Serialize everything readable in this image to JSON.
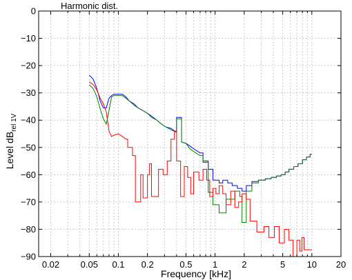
{
  "chart_data": {
    "type": "line",
    "title": "Harmonic dist.",
    "xlabel": "Frequency [kHz]",
    "ylabel": "Level dB",
    "ylabel_sub": "rel 1V",
    "xscale": "log",
    "xlim": [
      0.015,
      20
    ],
    "ylim": [
      -90,
      0
    ],
    "grid": true,
    "x_ticks": [
      {
        "value": 0.02,
        "label": "0.02"
      },
      {
        "value": 0.05,
        "label": "0.05"
      },
      {
        "value": 0.1,
        "label": "0.1"
      },
      {
        "value": 0.2,
        "label": "0.2"
      },
      {
        "value": 0.5,
        "label": "0.5"
      },
      {
        "value": 1,
        "label": "1"
      },
      {
        "value": 2,
        "label": "2"
      },
      {
        "value": 5,
        "label": "5"
      },
      {
        "value": 10,
        "label": "10"
      },
      {
        "value": 20,
        "label": "20"
      }
    ],
    "y_ticks": [
      {
        "value": 0,
        "label": "0"
      },
      {
        "value": -10,
        "label": "−10"
      },
      {
        "value": -20,
        "label": "−20"
      },
      {
        "value": -30,
        "label": "−30"
      },
      {
        "value": -40,
        "label": "−40"
      },
      {
        "value": -50,
        "label": "−50"
      },
      {
        "value": -60,
        "label": "−60"
      },
      {
        "value": -70,
        "label": "−70"
      },
      {
        "value": -80,
        "label": "−80"
      },
      {
        "value": -90,
        "label": "−90"
      }
    ],
    "minor_x_grid": [
      0.03,
      0.04,
      0.06,
      0.07,
      0.08,
      0.09,
      0.3,
      0.4,
      0.6,
      0.7,
      0.8,
      0.9,
      3,
      4,
      6,
      7,
      8,
      9
    ],
    "series": [
      {
        "color": "#0000ff",
        "points": [
          [
            0.05,
            -23.5
          ],
          [
            0.055,
            -25
          ],
          [
            0.06,
            -28.5
          ],
          [
            0.065,
            -33
          ],
          [
            0.07,
            -35.5
          ],
          [
            0.075,
            -35.5
          ],
          [
            0.08,
            -32
          ],
          [
            0.085,
            -31
          ],
          [
            0.09,
            -30.5
          ],
          [
            0.11,
            -30.5
          ],
          [
            0.12,
            -31.5
          ],
          [
            0.13,
            -33
          ],
          [
            0.145,
            -34
          ],
          [
            0.16,
            -35.5
          ],
          [
            0.18,
            -36.5
          ],
          [
            0.2,
            -37.5
          ],
          [
            0.22,
            -38.5
          ],
          [
            0.25,
            -40
          ],
          [
            0.28,
            -41.5
          ],
          [
            0.31,
            -42.5
          ],
          [
            0.35,
            -43
          ],
          [
            0.4,
            -44.5
          ],
          [
            0.4,
            -39
          ],
          [
            0.45,
            -39
          ],
          [
            0.45,
            -48
          ],
          [
            0.5,
            -48.5
          ],
          [
            0.55,
            -49.5
          ],
          [
            0.6,
            -50.5
          ],
          [
            0.7,
            -52
          ],
          [
            0.75,
            -52
          ],
          [
            0.75,
            -55
          ],
          [
            0.85,
            -55
          ],
          [
            0.85,
            -58
          ],
          [
            0.95,
            -58
          ],
          [
            0.95,
            -62
          ],
          [
            1.1,
            -62
          ],
          [
            1.1,
            -63
          ],
          [
            1.2,
            -63
          ],
          [
            1.2,
            -62
          ],
          [
            1.35,
            -62
          ],
          [
            1.35,
            -63
          ],
          [
            1.5,
            -63
          ],
          [
            1.5,
            -64
          ],
          [
            1.7,
            -64
          ],
          [
            1.7,
            -65
          ],
          [
            1.9,
            -65
          ],
          [
            1.9,
            -66
          ],
          [
            2.1,
            -66
          ],
          [
            2.1,
            -64
          ],
          [
            2.4,
            -64
          ],
          [
            2.4,
            -62.5
          ],
          [
            2.8,
            -62.5
          ],
          [
            2.8,
            -62
          ],
          [
            3.3,
            -62
          ],
          [
            3.3,
            -61.5
          ],
          [
            3.8,
            -61.5
          ],
          [
            3.8,
            -61
          ],
          [
            4.3,
            -61
          ],
          [
            4.3,
            -60.5
          ],
          [
            4.8,
            -60.5
          ],
          [
            4.8,
            -60
          ],
          [
            5.3,
            -60
          ],
          [
            5.3,
            -59
          ],
          [
            5.8,
            -59
          ],
          [
            5.8,
            -58
          ],
          [
            6.5,
            -58
          ],
          [
            6.5,
            -57
          ],
          [
            7.2,
            -57
          ],
          [
            7.2,
            -56
          ],
          [
            8,
            -56
          ],
          [
            8,
            -54.5
          ],
          [
            8.8,
            -54.5
          ],
          [
            8.8,
            -53.5
          ],
          [
            9.6,
            -53.5
          ],
          [
            9.6,
            -52.5
          ],
          [
            10,
            -52.5
          ]
        ]
      },
      {
        "color": "#008000",
        "points": [
          [
            0.05,
            -27
          ],
          [
            0.055,
            -28.5
          ],
          [
            0.06,
            -31.5
          ],
          [
            0.065,
            -36
          ],
          [
            0.07,
            -39.5
          ],
          [
            0.075,
            -41.5
          ],
          [
            0.08,
            -36.5
          ],
          [
            0.085,
            -31.5
          ],
          [
            0.09,
            -31
          ],
          [
            0.11,
            -31
          ],
          [
            0.12,
            -32
          ],
          [
            0.13,
            -33
          ],
          [
            0.145,
            -34.5
          ],
          [
            0.16,
            -35.5
          ],
          [
            0.18,
            -36.5
          ],
          [
            0.2,
            -37.5
          ],
          [
            0.22,
            -39
          ],
          [
            0.25,
            -40
          ],
          [
            0.28,
            -41.5
          ],
          [
            0.31,
            -42.5
          ],
          [
            0.35,
            -43.5
          ],
          [
            0.4,
            -44.5
          ],
          [
            0.4,
            -39.5
          ],
          [
            0.45,
            -39.5
          ],
          [
            0.45,
            -48
          ],
          [
            0.5,
            -48.5
          ],
          [
            0.55,
            -50.5
          ],
          [
            0.6,
            -51.5
          ],
          [
            0.7,
            -53
          ],
          [
            0.75,
            -53
          ],
          [
            0.75,
            -55.5
          ],
          [
            0.85,
            -55.5
          ],
          [
            0.85,
            -66.5
          ],
          [
            0.95,
            -66.5
          ],
          [
            0.95,
            -71
          ],
          [
            1.1,
            -71
          ],
          [
            1.1,
            -74
          ],
          [
            1.3,
            -74
          ],
          [
            1.3,
            -69
          ],
          [
            1.6,
            -69
          ],
          [
            1.6,
            -66
          ],
          [
            1.8,
            -66
          ],
          [
            1.8,
            -68
          ],
          [
            1.9,
            -68
          ],
          [
            1.9,
            -77.5
          ],
          [
            2.1,
            -77.5
          ],
          [
            2.1,
            -66
          ],
          [
            2.4,
            -66
          ],
          [
            2.4,
            -63
          ],
          [
            2.8,
            -63
          ],
          [
            2.8,
            -62
          ],
          [
            3.3,
            -62
          ],
          [
            3.3,
            -61.5
          ],
          [
            3.8,
            -61.5
          ],
          [
            3.8,
            -61
          ],
          [
            4.3,
            -61
          ],
          [
            4.3,
            -60.5
          ],
          [
            4.8,
            -60.5
          ],
          [
            4.8,
            -60
          ],
          [
            5.3,
            -60
          ],
          [
            5.3,
            -59
          ],
          [
            5.8,
            -59
          ],
          [
            5.8,
            -58
          ],
          [
            6.5,
            -58
          ],
          [
            6.5,
            -57
          ],
          [
            7.2,
            -57
          ],
          [
            7.2,
            -56
          ],
          [
            8,
            -56
          ],
          [
            8,
            -54.5
          ],
          [
            8.8,
            -54.5
          ],
          [
            8.8,
            -53.5
          ],
          [
            9.6,
            -53.5
          ],
          [
            9.6,
            -52.5
          ],
          [
            10,
            -52.5
          ]
        ]
      },
      {
        "color": "#ff0000",
        "points": [
          [
            0.05,
            -26
          ],
          [
            0.055,
            -27
          ],
          [
            0.06,
            -29
          ],
          [
            0.065,
            -32
          ],
          [
            0.07,
            -34
          ],
          [
            0.075,
            -37
          ],
          [
            0.08,
            -44
          ],
          [
            0.085,
            -46
          ],
          [
            0.09,
            -45.5
          ],
          [
            0.1,
            -45
          ],
          [
            0.11,
            -46
          ],
          [
            0.12,
            -47
          ],
          [
            0.125,
            -47
          ],
          [
            0.125,
            -50
          ],
          [
            0.14,
            -50
          ],
          [
            0.14,
            -53
          ],
          [
            0.15,
            -53
          ],
          [
            0.15,
            -70
          ],
          [
            0.17,
            -70
          ],
          [
            0.17,
            -60
          ],
          [
            0.18,
            -60
          ],
          [
            0.18,
            -68.5
          ],
          [
            0.2,
            -68.5
          ],
          [
            0.2,
            -60
          ],
          [
            0.21,
            -60
          ],
          [
            0.21,
            -56
          ],
          [
            0.22,
            -56
          ],
          [
            0.22,
            -68
          ],
          [
            0.26,
            -68
          ],
          [
            0.26,
            -58
          ],
          [
            0.29,
            -58
          ],
          [
            0.29,
            -60
          ],
          [
            0.32,
            -60
          ],
          [
            0.32,
            -55
          ],
          [
            0.35,
            -55
          ],
          [
            0.35,
            -47
          ],
          [
            0.38,
            -47
          ],
          [
            0.38,
            -44
          ],
          [
            0.4,
            -44
          ],
          [
            0.4,
            -55
          ],
          [
            0.44,
            -55
          ],
          [
            0.44,
            -68
          ],
          [
            0.48,
            -68
          ],
          [
            0.48,
            -57
          ],
          [
            0.52,
            -57
          ],
          [
            0.52,
            -61
          ],
          [
            0.56,
            -61
          ],
          [
            0.56,
            -67
          ],
          [
            0.6,
            -67
          ],
          [
            0.6,
            -59
          ],
          [
            0.68,
            -59
          ],
          [
            0.68,
            -62
          ],
          [
            0.75,
            -62
          ],
          [
            0.75,
            -58
          ],
          [
            0.82,
            -58
          ],
          [
            0.82,
            -62
          ],
          [
            0.88,
            -62
          ],
          [
            0.88,
            -68
          ],
          [
            0.95,
            -68
          ],
          [
            0.95,
            -65
          ],
          [
            1.02,
            -65
          ],
          [
            1.02,
            -67
          ],
          [
            1.1,
            -67
          ],
          [
            1.1,
            -64
          ],
          [
            1.2,
            -64
          ],
          [
            1.2,
            -67
          ],
          [
            1.3,
            -67
          ],
          [
            1.3,
            -71
          ],
          [
            1.45,
            -71
          ],
          [
            1.45,
            -66
          ],
          [
            1.6,
            -66
          ],
          [
            1.6,
            -72
          ],
          [
            1.75,
            -72
          ],
          [
            1.75,
            -70
          ],
          [
            1.9,
            -70
          ],
          [
            1.9,
            -67
          ],
          [
            2.1,
            -67
          ],
          [
            2.1,
            -69
          ],
          [
            2.3,
            -69
          ],
          [
            2.3,
            -77
          ],
          [
            2.7,
            -77
          ],
          [
            2.7,
            -81
          ],
          [
            3.2,
            -81
          ],
          [
            3.2,
            -79
          ],
          [
            3.6,
            -79
          ],
          [
            3.6,
            -83
          ],
          [
            4.1,
            -83
          ],
          [
            4.1,
            -79
          ],
          [
            4.6,
            -79
          ],
          [
            4.6,
            -85
          ],
          [
            5.2,
            -85
          ],
          [
            5.2,
            -80
          ],
          [
            5.8,
            -80
          ],
          [
            5.8,
            -84
          ],
          [
            6.4,
            -84
          ],
          [
            6.4,
            -90
          ],
          [
            7,
            -90
          ],
          [
            7,
            -84
          ],
          [
            7.5,
            -84
          ],
          [
            7.5,
            -88
          ],
          [
            7.9,
            -88
          ],
          [
            7.9,
            -83
          ],
          [
            8.3,
            -83
          ],
          [
            8.3,
            -87.5
          ],
          [
            10,
            -87.5
          ]
        ]
      }
    ]
  }
}
